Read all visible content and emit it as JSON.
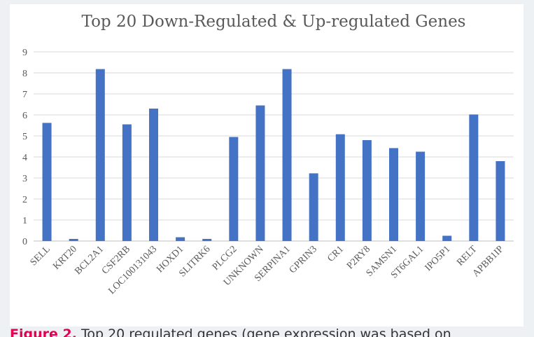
{
  "chart_data": {
    "type": "bar",
    "title": "Top 20 Down-Regulated & Up-regulated Genes",
    "xlabel": "",
    "ylabel": "",
    "ylim": [
      0,
      9
    ],
    "yticks": [
      0,
      1,
      2,
      3,
      4,
      5,
      6,
      7,
      8,
      9
    ],
    "grid": true,
    "legend": "none",
    "bar_color": "#4472c4",
    "categories": [
      "SELL",
      "KRT20",
      "BCL2A1",
      "CSF2RB",
      "LOC100131043",
      "HOXD1",
      "SLITRK6",
      "PLCG2",
      "UNKNOWN",
      "SERPINA1",
      "GPRIN3",
      "CR1",
      "P2RY8",
      "SAMSN1",
      "ST6GAL1",
      "IPO5P1",
      "RELT",
      "APBB1IP"
    ],
    "values": [
      5.62,
      0.1,
      8.18,
      5.55,
      6.3,
      0.18,
      0.1,
      4.95,
      6.45,
      8.18,
      3.22,
      5.08,
      4.8,
      4.42,
      4.25,
      0.25,
      6.02,
      3.8
    ]
  },
  "caption": {
    "figure_label": "Figure 2.",
    "text": " Top 20 regulated genes (gene expression was based on"
  }
}
